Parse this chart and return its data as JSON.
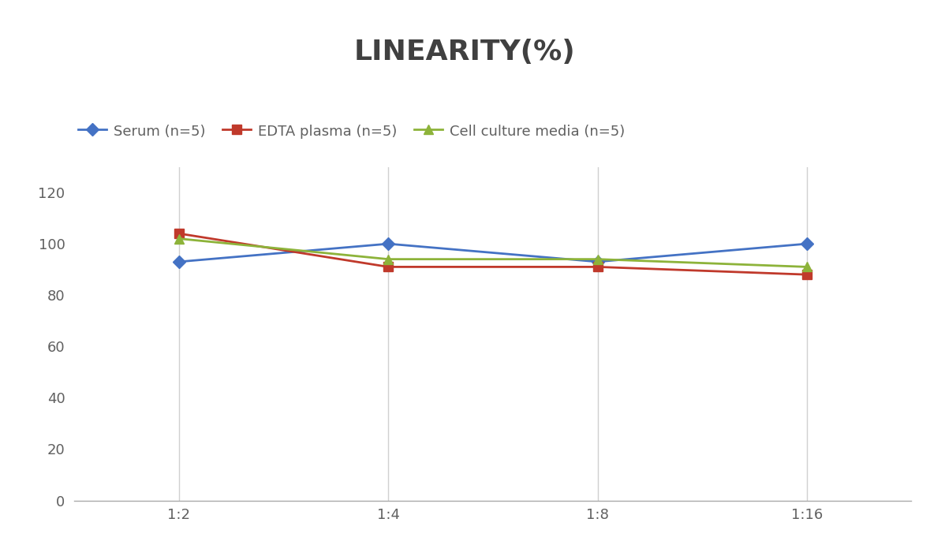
{
  "title": "LINEARITY(%)",
  "x_labels": [
    "1:2",
    "1:4",
    "1:8",
    "1:16"
  ],
  "x_positions": [
    0,
    1,
    2,
    3
  ],
  "series": [
    {
      "label": "Serum (n=5)",
      "values": [
        93,
        100,
        93,
        100
      ],
      "color": "#4472C4",
      "marker": "D",
      "markersize": 8,
      "linewidth": 2
    },
    {
      "label": "EDTA plasma (n=5)",
      "values": [
        104,
        91,
        91,
        88
      ],
      "color": "#C0392B",
      "marker": "s",
      "markersize": 8,
      "linewidth": 2
    },
    {
      "label": "Cell culture media (n=5)",
      "values": [
        102,
        94,
        94,
        91
      ],
      "color": "#8DB33A",
      "marker": "^",
      "markersize": 8,
      "linewidth": 2
    }
  ],
  "ylim": [
    0,
    130
  ],
  "yticks": [
    0,
    20,
    40,
    60,
    80,
    100,
    120
  ],
  "grid_color": "#D0D0D0",
  "background_color": "#FFFFFF",
  "title_fontsize": 26,
  "legend_fontsize": 13,
  "tick_fontsize": 13,
  "title_color": "#404040",
  "tick_color": "#606060"
}
